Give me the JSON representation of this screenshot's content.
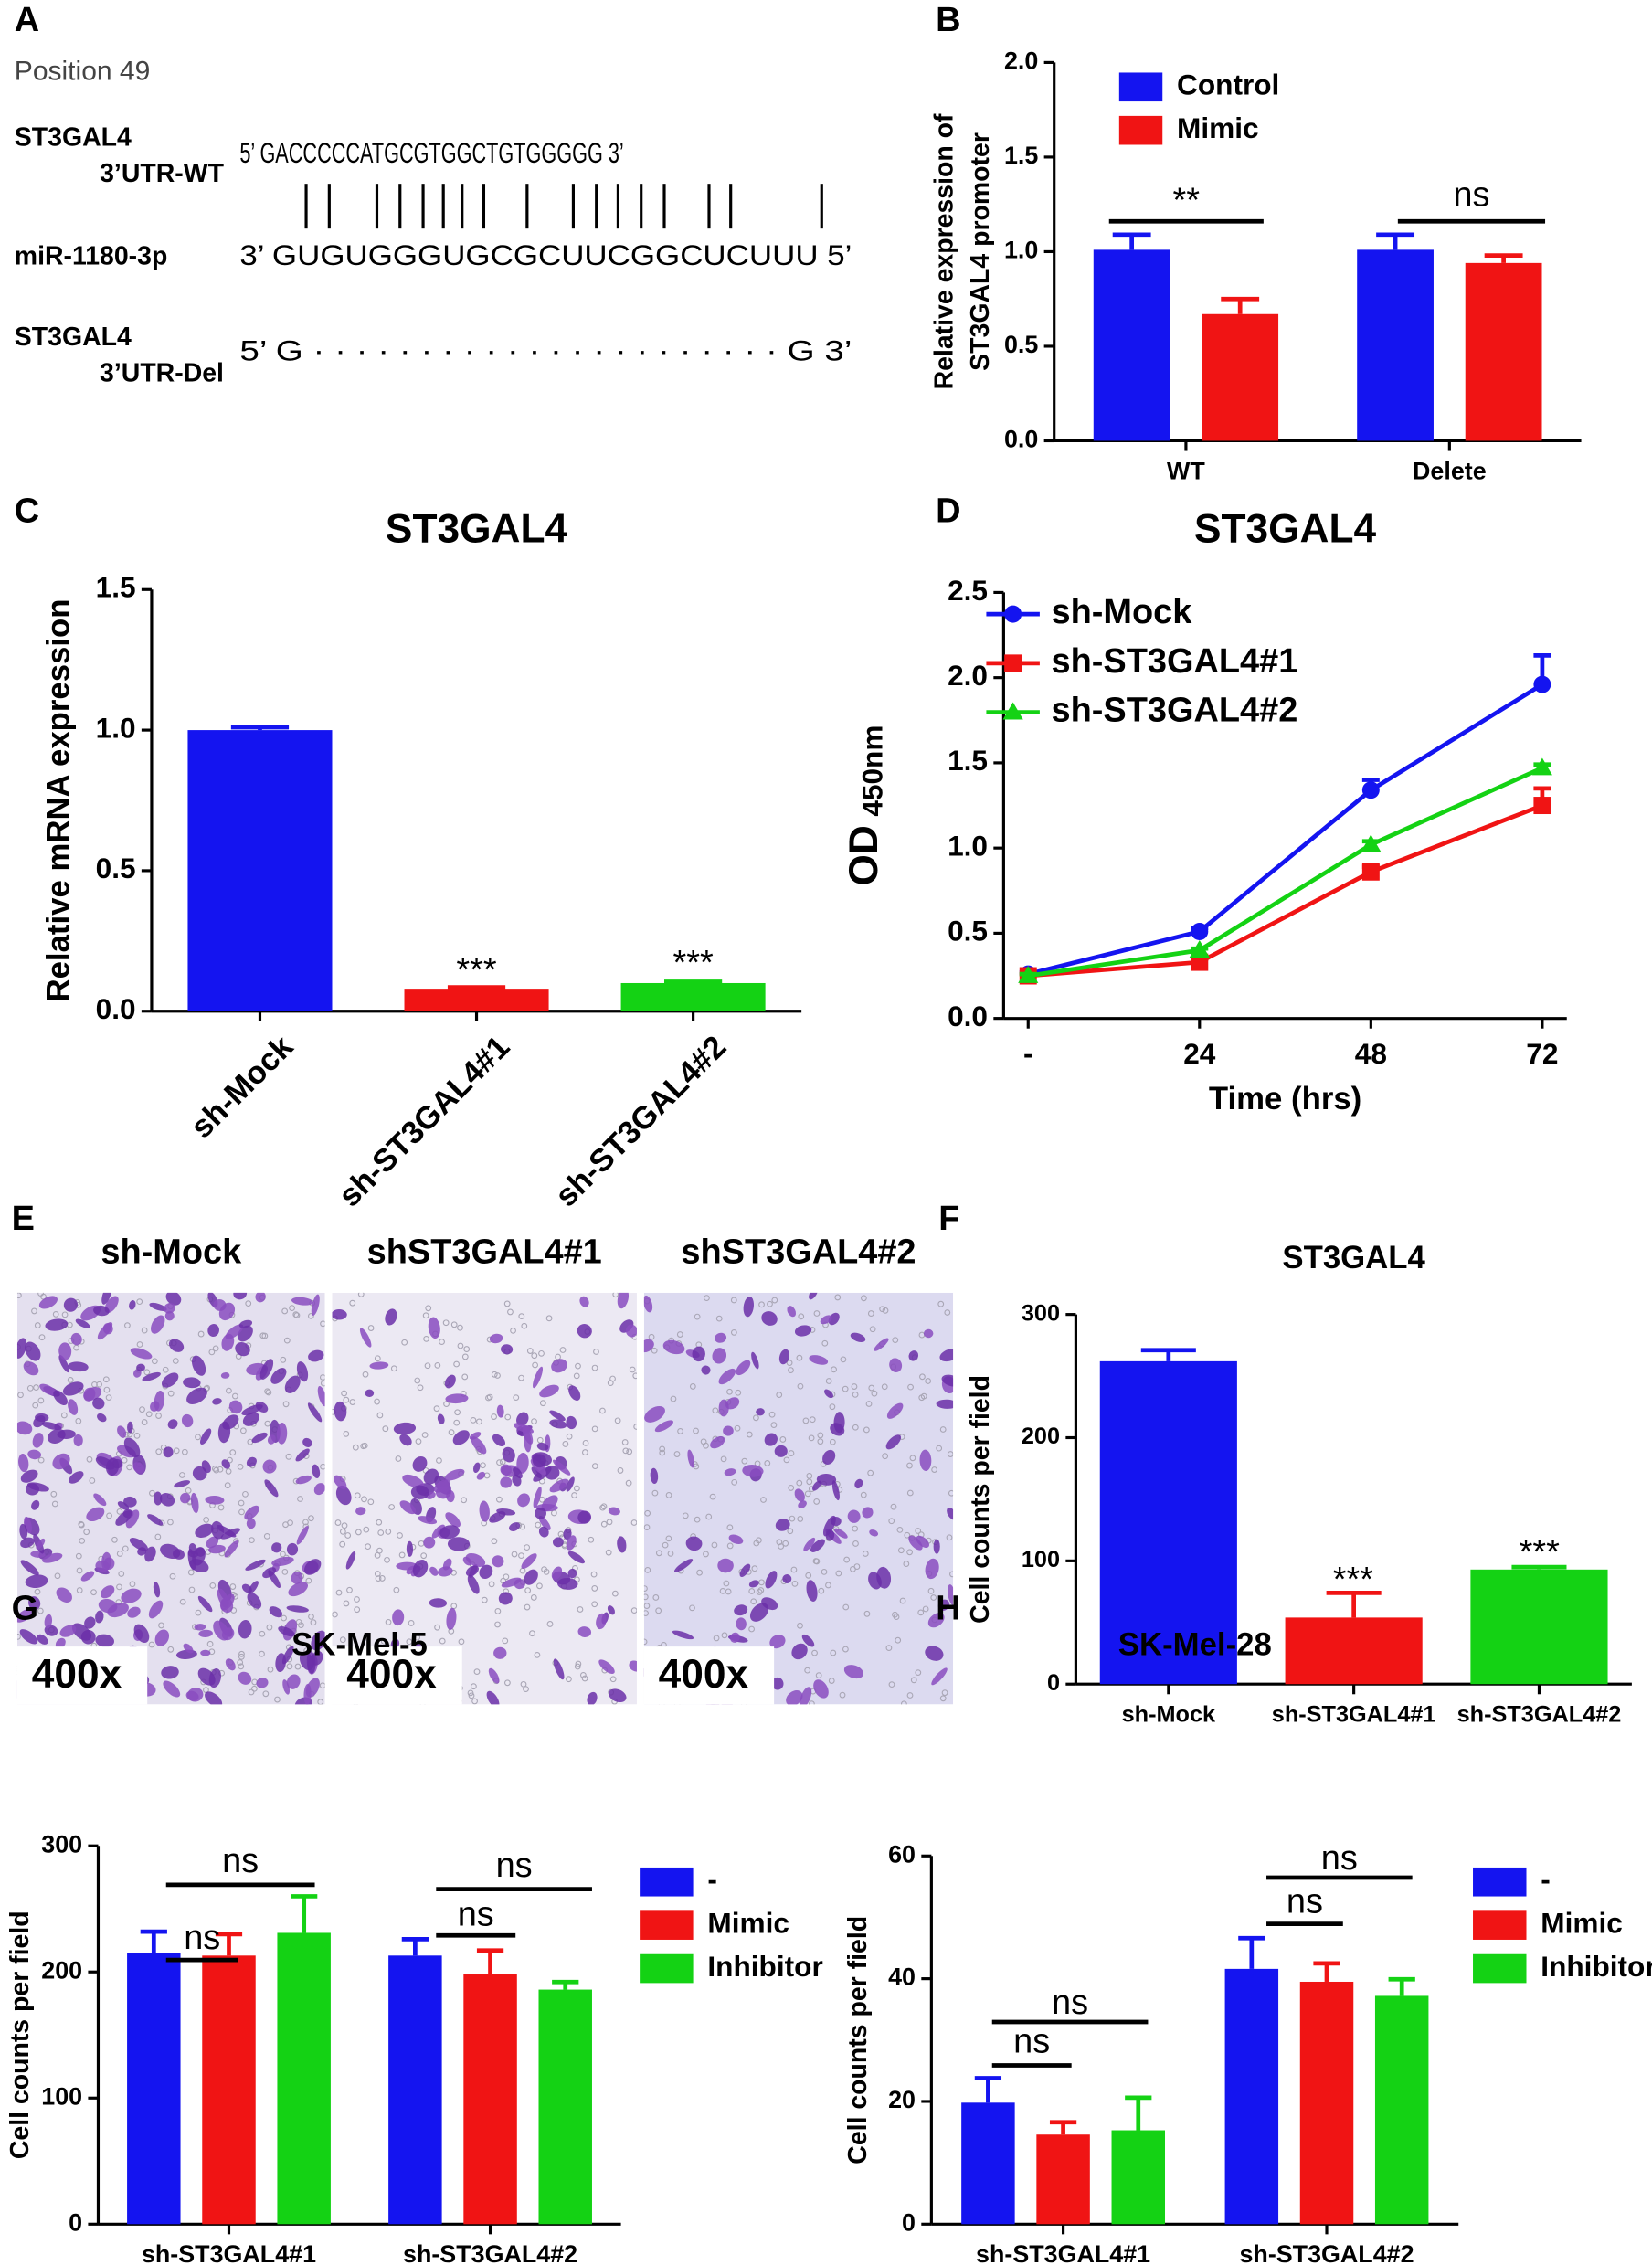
{
  "panel_a": {
    "label": "A",
    "position": "Position 49",
    "wt_name": [
      "ST3GAL4",
      "3’UTR-WT"
    ],
    "wt_seq": "5’ GACCCCCATGCGTGGCTGTGGGGG 3’",
    "mir_name": "miR-1180-3p",
    "mir_seq": "3’ GUGUGGGUGCGCUUCGGCUCUUU 5’",
    "del_name": [
      "ST3GAL4",
      "3’UTR-Del"
    ],
    "del_seq": "5’ G · · · · · · · · · · · · · · · · · · · · · · G 3’"
  },
  "panel_e": {
    "label": "E",
    "images": [
      {
        "title": "sh-Mock",
        "magnification": "400x"
      },
      {
        "title": "shST3GAL4#1",
        "magnification": "400x"
      },
      {
        "title": "shST3GAL4#2",
        "magnification": "400x"
      }
    ]
  },
  "chart_data": [
    {
      "label": "B",
      "type": "bar",
      "ylabel": [
        "Relative expression of",
        "ST3GAL4 promoter"
      ],
      "categories": [
        "WT",
        "Delete"
      ],
      "series": [
        {
          "name": "Control",
          "color": "#1414f0",
          "values": [
            1.01,
            1.01
          ],
          "errors": [
            0.08,
            0.08
          ]
        },
        {
          "name": "Mimic",
          "color": "#f01414",
          "values": [
            0.67,
            0.94
          ],
          "errors": [
            0.08,
            0.04
          ]
        }
      ],
      "ylim": [
        0,
        2
      ],
      "yticks": [
        {
          "value": 0,
          "label": "0.0"
        },
        {
          "value": 0.5,
          "label": "0.5"
        },
        {
          "value": 1,
          "label": "1.0"
        },
        {
          "value": 1.5,
          "label": "1.5"
        },
        {
          "value": 2,
          "label": "2.0"
        }
      ],
      "legend": "upper left",
      "annotations": [
        "**",
        "ns"
      ]
    },
    {
      "label": "C",
      "type": "bar",
      "title": "ST3GAL4",
      "ylabel": [
        "Relative mRNA expression"
      ],
      "categories": [
        "sh-Mock",
        "sh-ST3GAL4#1",
        "sh-ST3GAL4#2"
      ],
      "values": [
        1.0,
        0.08,
        0.1
      ],
      "errors": [
        0.01,
        0.005,
        0.005
      ],
      "colors": [
        "#1414f0",
        "#f01414",
        "#14d214"
      ],
      "ylim": [
        0,
        1.5
      ],
      "yticks": [
        {
          "value": 0,
          "label": "0.0"
        },
        {
          "value": 0.5,
          "label": "0.5"
        },
        {
          "value": 1,
          "label": "1.0"
        },
        {
          "value": 1.5,
          "label": "1.5"
        }
      ],
      "annotations": [
        "***",
        "***"
      ]
    },
    {
      "label": "D",
      "type": "line",
      "title": "ST3GAL4",
      "ylabel": "OD",
      "ylabel_sub": "450nm",
      "xlabel": "Time (hrs)",
      "categories": [
        "-",
        "24",
        "48",
        "72"
      ],
      "series": [
        {
          "name": "sh-Mock",
          "color": "#1414f0",
          "marker": "circle",
          "values": [
            0.26,
            0.51,
            1.34,
            1.96
          ],
          "errors": [
            0.01,
            0.02,
            0.06,
            0.17
          ]
        },
        {
          "name": "sh-ST3GAL4#1",
          "color": "#f01414",
          "marker": "square",
          "values": [
            0.25,
            0.33,
            0.86,
            1.25
          ],
          "errors": [
            0.01,
            0.02,
            0.03,
            0.1
          ]
        },
        {
          "name": "sh-ST3GAL4#2",
          "color": "#14d214",
          "marker": "triangle",
          "values": [
            0.25,
            0.4,
            1.02,
            1.47
          ],
          "errors": [
            0.01,
            0.01,
            0.02,
            0.02
          ]
        }
      ],
      "ylim": [
        0,
        2.5
      ],
      "yticks": [
        {
          "value": 0,
          "label": "0.0"
        },
        {
          "value": 0.5,
          "label": "0.5"
        },
        {
          "value": 1,
          "label": "1.0"
        },
        {
          "value": 1.5,
          "label": "1.5"
        },
        {
          "value": 2,
          "label": "2.0"
        },
        {
          "value": 2.5,
          "label": "2.5"
        }
      ],
      "legend": "upper left"
    },
    {
      "label": "F",
      "type": "bar",
      "title": "ST3GAL4",
      "ylabel": [
        "Cell counts per field"
      ],
      "categories": [
        "sh-Mock",
        "sh-ST3GAL4#1",
        "sh-ST3GAL4#2"
      ],
      "values": [
        262,
        54,
        93
      ],
      "errors": [
        9,
        20,
        2
      ],
      "colors": [
        "#1414f0",
        "#f01414",
        "#14d214"
      ],
      "ylim": [
        0,
        300
      ],
      "yticks": [
        0,
        100,
        200,
        300
      ],
      "annotations": [
        "***",
        "***"
      ]
    },
    {
      "label": "G",
      "type": "bar",
      "title": "SK-Mel-5",
      "ylabel": [
        "Cell counts per field"
      ],
      "categories": [
        "sh-ST3GAL4#1",
        "sh-ST3GAL4#2"
      ],
      "series": [
        {
          "name": "-",
          "color": "#1414f0",
          "values": [
            215,
            213
          ],
          "errors": [
            17,
            13
          ]
        },
        {
          "name": "Mimic",
          "color": "#f01414",
          "values": [
            213,
            198
          ],
          "errors": [
            17,
            19
          ]
        },
        {
          "name": "Inhibitor",
          "color": "#14d214",
          "values": [
            231,
            186
          ],
          "errors": [
            29,
            6
          ]
        }
      ],
      "ylim": [
        0,
        300
      ],
      "yticks": [
        0,
        100,
        200,
        300
      ],
      "legend": "right",
      "annotations": [
        "ns",
        "ns",
        "ns",
        "ns"
      ]
    },
    {
      "label": "H",
      "type": "bar",
      "title": "SK-Mel-28",
      "ylabel": [
        "Cell counts per field"
      ],
      "categories": [
        "sh-ST3GAL4#1",
        "sh-ST3GAL4#2"
      ],
      "series": [
        {
          "name": "-",
          "color": "#1414f0",
          "values": [
            19.8,
            41.6
          ],
          "errors": [
            4,
            5
          ]
        },
        {
          "name": "Mimic",
          "color": "#f01414",
          "values": [
            14.6,
            39.5
          ],
          "errors": [
            2,
            3
          ]
        },
        {
          "name": "Inhibitor",
          "color": "#14d214",
          "values": [
            15.3,
            37.2
          ],
          "errors": [
            5.3,
            2.7
          ]
        }
      ],
      "ylim": [
        0,
        60
      ],
      "yticks": [
        0,
        20,
        40,
        60
      ],
      "legend": "right",
      "annotations": [
        "ns",
        "ns",
        "ns",
        "ns"
      ]
    }
  ]
}
